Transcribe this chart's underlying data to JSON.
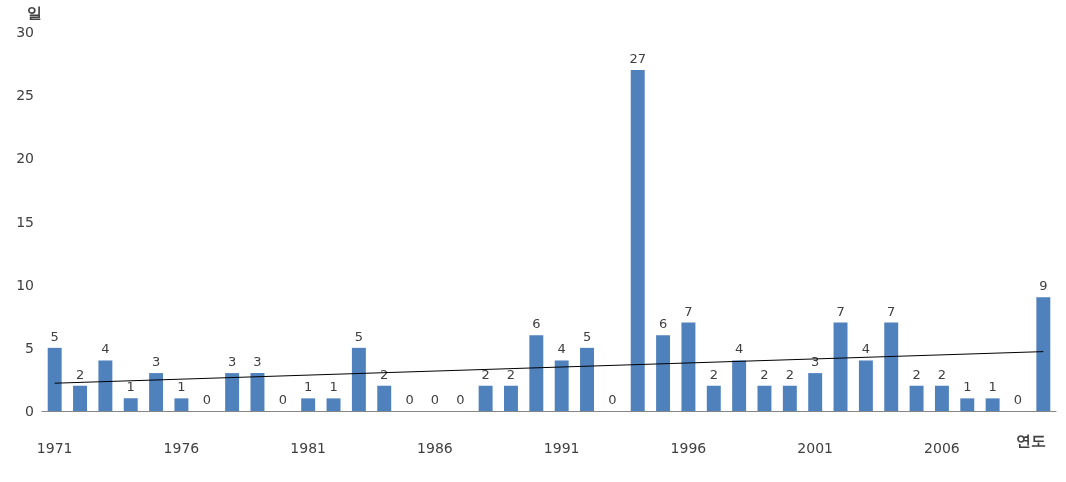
{
  "chart_data": {
    "type": "bar",
    "xlabel": "연도",
    "ylabel": "일",
    "categories": [
      "1971",
      null,
      null,
      null,
      null,
      "1976",
      null,
      null,
      null,
      null,
      "1981",
      null,
      null,
      null,
      null,
      "1986",
      null,
      null,
      null,
      null,
      "1991",
      null,
      null,
      null,
      null,
      "1996",
      null,
      null,
      null,
      null,
      "2001",
      null,
      null,
      null,
      null,
      "2006",
      null,
      null,
      null,
      null
    ],
    "series": [
      {
        "color": "#4f81bd",
        "values": [
          5,
          2,
          4,
          1,
          3,
          1,
          0,
          3,
          3,
          0,
          1,
          1,
          5,
          2,
          0,
          0,
          0,
          2,
          2,
          6,
          4,
          5,
          0,
          27,
          6,
          7,
          2,
          4,
          2,
          2,
          3,
          7,
          4,
          7,
          2,
          2,
          1,
          1,
          0,
          9
        ],
        "value_labels": [
          "5",
          "2",
          "4",
          "1",
          "3",
          "1",
          "0",
          "3",
          "3",
          "0",
          "1",
          "1",
          "5",
          "2",
          "0",
          "0",
          "0",
          "2",
          "2",
          "6",
          "4",
          "5",
          "0",
          "27",
          "6",
          "7",
          "2",
          "4",
          "2",
          "2",
          "3",
          "7",
          "4",
          "7",
          "2",
          "2",
          "1",
          "1",
          "0",
          "9"
        ]
      },
      {
        "type": "line",
        "color": "#000000",
        "values": [
          2.2,
          null,
          null,
          null,
          null,
          null,
          null,
          null,
          null,
          null,
          null,
          null,
          null,
          null,
          null,
          null,
          null,
          null,
          null,
          null,
          null,
          null,
          null,
          null,
          null,
          null,
          null,
          null,
          null,
          null,
          null,
          null,
          null,
          null,
          null,
          null,
          null,
          null,
          null,
          4.7
        ]
      }
    ],
    "ylim": [
      0,
      30
    ],
    "yticks": [
      0,
      5,
      10,
      15,
      20,
      25,
      30
    ],
    "grid": false
  }
}
